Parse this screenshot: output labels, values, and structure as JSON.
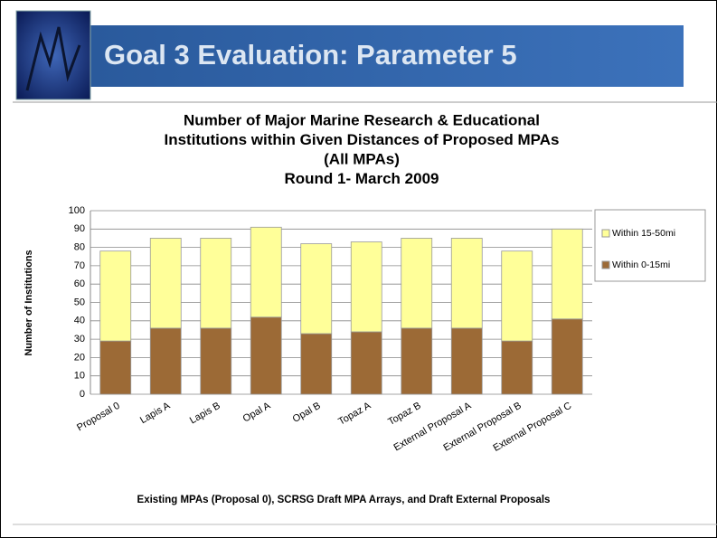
{
  "slide": {
    "title": "Goal 3 Evaluation: Parameter 5"
  },
  "chart_data": {
    "type": "stacked-bar",
    "title": [
      "Number of Major Marine Research & Educational",
      "Institutions within Given Distances of Proposed MPAs",
      "(All MPAs)",
      "Round 1- March 2009"
    ],
    "y_label": "Number of Institutions",
    "x_label": "Existing MPAs (Proposal 0), SCRSG Draft MPA Arrays, and Draft External Proposals",
    "categories": [
      "Proposal 0",
      "Lapis A",
      "Lapis B",
      "Opal A",
      "Opal B",
      "Topaz A",
      "Topaz B",
      "External Proposal A",
      "External Proposal B",
      "External Proposal C"
    ],
    "series": [
      {
        "name": "Within 0-15mi",
        "color": "#9c6a36",
        "values": [
          29,
          36,
          36,
          42,
          33,
          34,
          36,
          36,
          29,
          41
        ]
      },
      {
        "name": "Within 15-50mi",
        "color": "#ffff99",
        "values": [
          49,
          49,
          49,
          49,
          49,
          49,
          49,
          49,
          49,
          49
        ]
      }
    ],
    "ylim": [
      0,
      100
    ],
    "yticks": [
      0,
      10,
      20,
      30,
      40,
      50,
      60,
      70,
      80,
      90,
      100
    ],
    "grid": true,
    "legend": "right"
  }
}
